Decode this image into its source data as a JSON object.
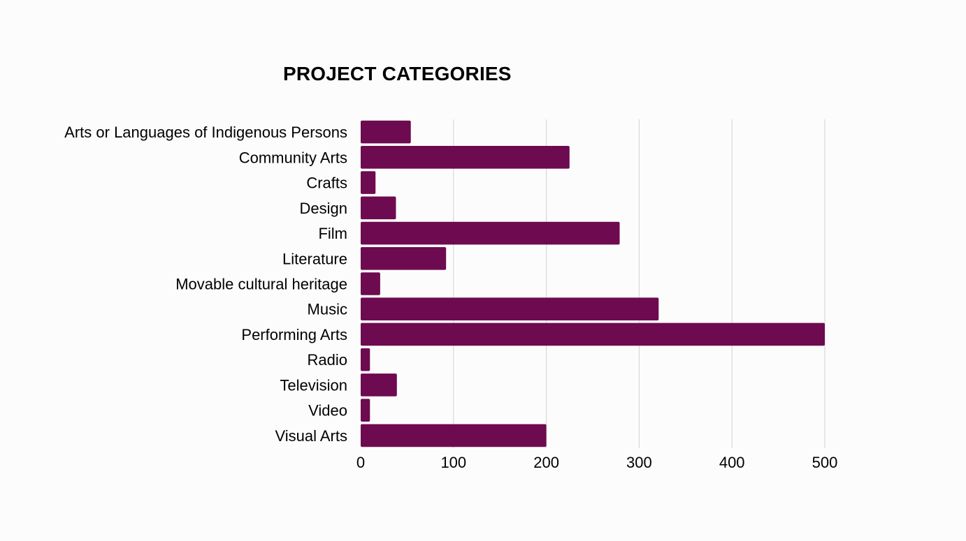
{
  "chart_data": {
    "type": "bar",
    "orientation": "horizontal",
    "title": "PROJECT CATEGORIES",
    "xlabel": "",
    "ylabel": "",
    "categories": [
      "Arts or Languages of Indigenous Persons",
      "Community Arts",
      "Crafts",
      "Design",
      "Film",
      "Literature",
      "Movable cultural heritage",
      "Music",
      "Performing Arts",
      "Radio",
      "Television",
      "Video",
      "Visual Arts"
    ],
    "values": [
      54,
      225,
      16,
      38,
      279,
      92,
      21,
      321,
      500,
      10,
      39,
      10,
      200
    ],
    "xlim": [
      0,
      500
    ],
    "xticks": [
      "0",
      "100",
      "200",
      "300",
      "400",
      "500"
    ],
    "grid": true,
    "legend": "none",
    "bar_color": "#6e0a4f"
  }
}
